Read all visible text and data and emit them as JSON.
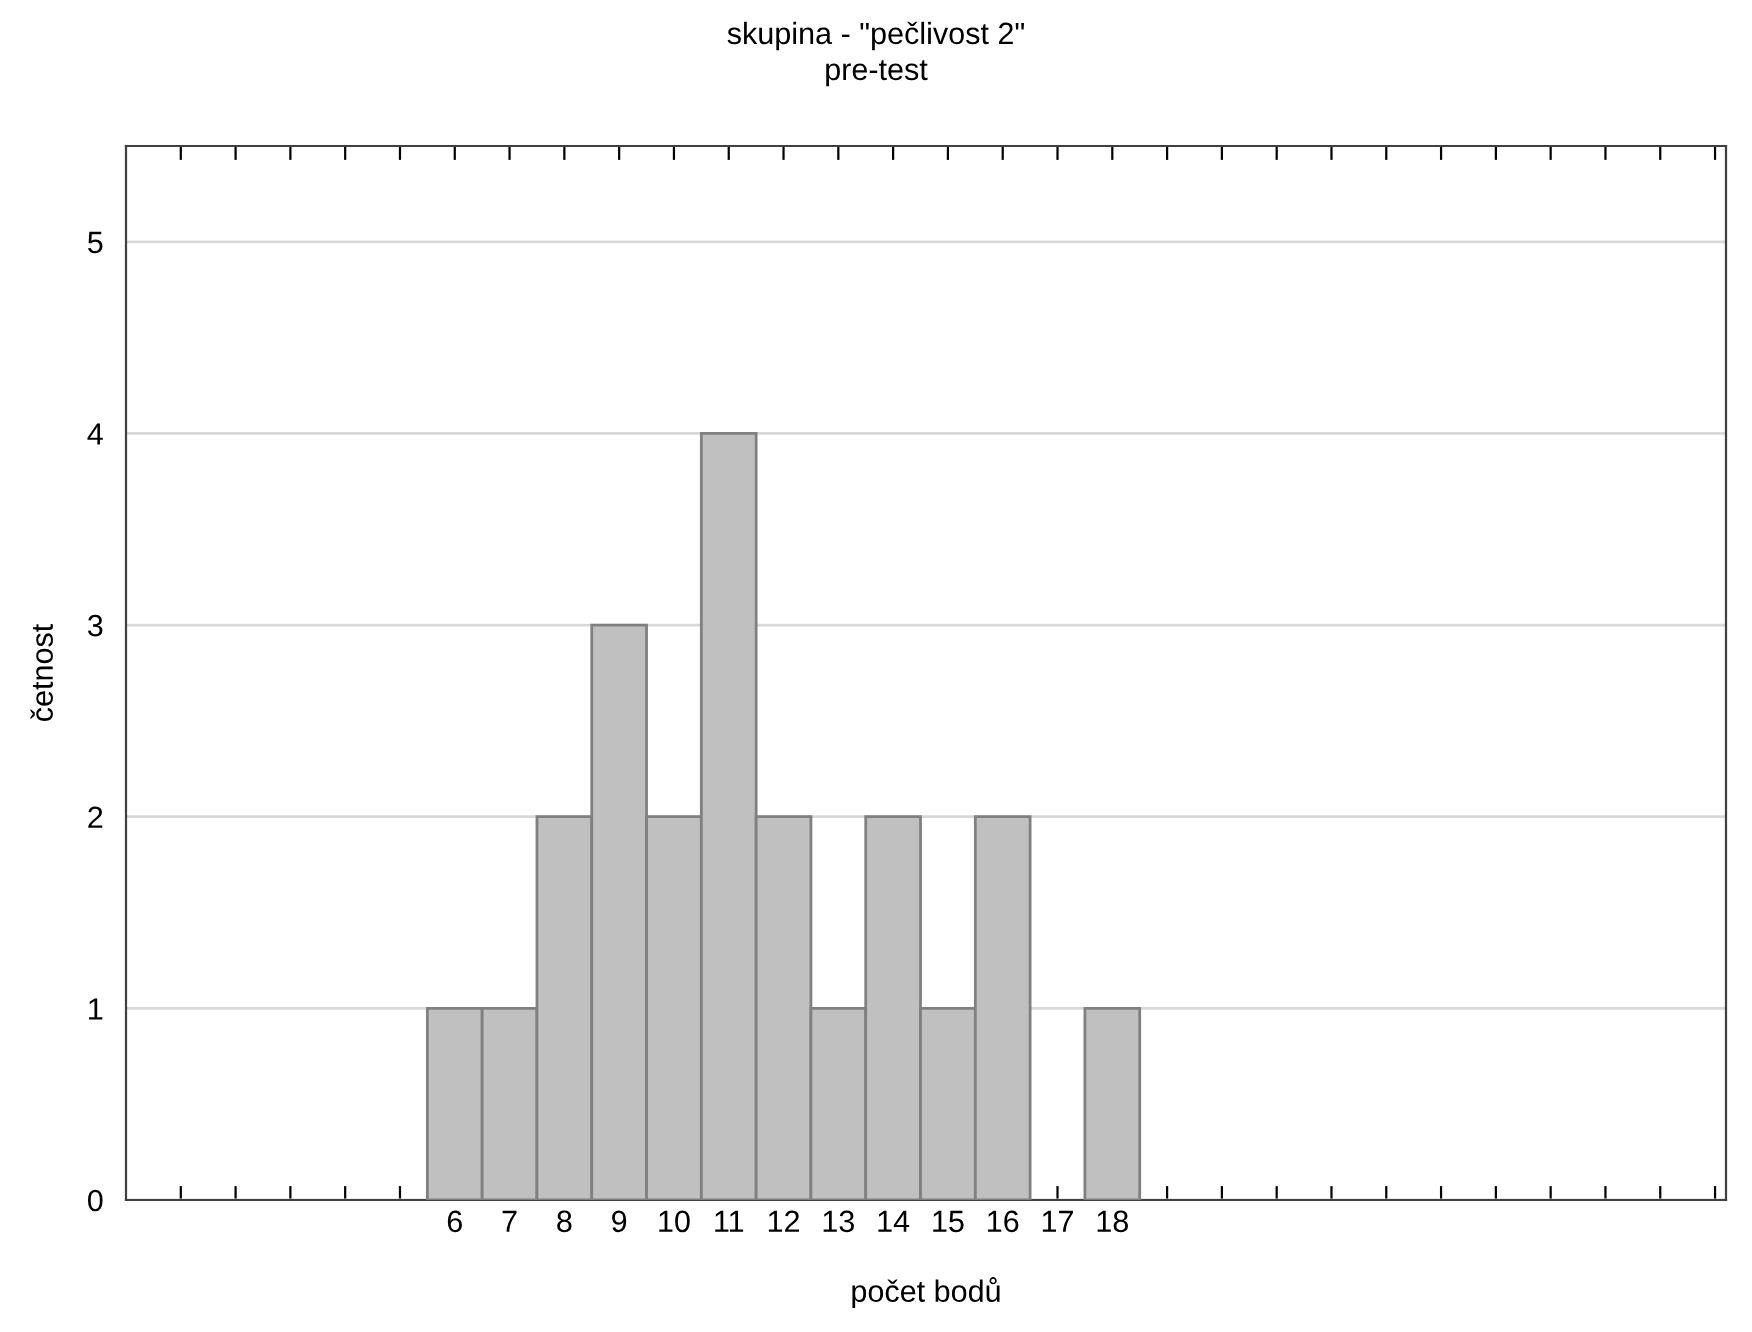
{
  "chart_data": {
    "type": "histogram",
    "title": "skupina - \"pečlivost 2\"",
    "subtitle": "pre-test",
    "xlabel": "počet bodů",
    "ylabel": "četnost",
    "bins": [
      5.5,
      6.5,
      7.5,
      8.5,
      9.5,
      10.5,
      11.5,
      12.5,
      13.5,
      14.5,
      15.5,
      16.5,
      17.5,
      18.5
    ],
    "values": [
      1,
      1,
      2,
      3,
      2,
      4,
      2,
      1,
      2,
      1,
      2,
      0,
      1
    ],
    "color": "#c0c0c0",
    "xlim": [
      0,
      29.2
    ],
    "xticks": [
      {
        "value": 1,
        "label": null
      },
      {
        "value": 2,
        "label": null
      },
      {
        "value": 3,
        "label": null
      },
      {
        "value": 4,
        "label": null
      },
      {
        "value": 5,
        "label": null
      },
      6,
      7,
      8,
      9,
      10,
      11,
      12,
      13,
      14,
      15,
      16,
      17,
      18,
      {
        "value": 19,
        "label": null
      },
      {
        "value": 20,
        "label": null
      },
      {
        "value": 21,
        "label": null
      },
      {
        "value": 22,
        "label": null
      },
      {
        "value": 23,
        "label": null
      },
      {
        "value": 24,
        "label": null
      },
      {
        "value": 25,
        "label": null
      },
      {
        "value": 26,
        "label": null
      },
      {
        "value": 27,
        "label": null
      },
      {
        "value": 28,
        "label": null
      },
      {
        "value": 29,
        "label": null
      }
    ],
    "ylim": [
      0,
      5.5
    ],
    "yticks": [
      0,
      1,
      2,
      3,
      4,
      5
    ],
    "grid": "y"
  }
}
